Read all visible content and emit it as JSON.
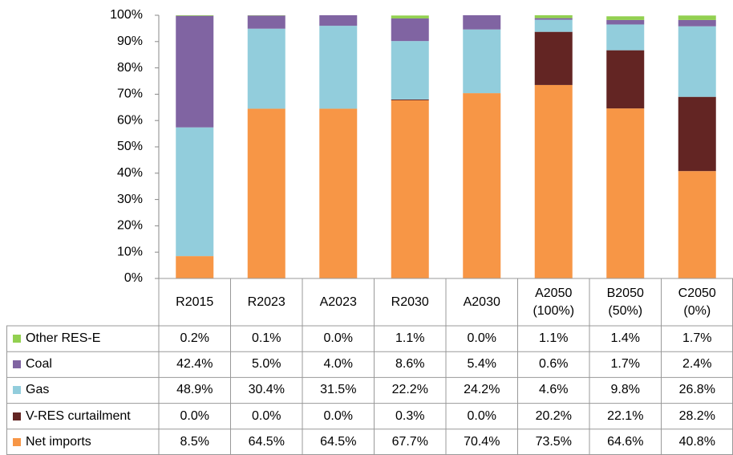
{
  "chart_data": {
    "type": "stacked_bar",
    "categories": [
      "R2015",
      "R2023",
      "A2023",
      "R2030",
      "A2030",
      "A2050 (100%)",
      "B2050 (50%)",
      "C2050 (0%)"
    ],
    "series": [
      {
        "name": "Net imports",
        "color": "#f79646",
        "values": [
          8.5,
          64.5,
          64.5,
          67.7,
          70.4,
          73.5,
          64.6,
          40.8
        ],
        "value_labels": [
          "8.5%",
          "64.5%",
          "64.5%",
          "67.7%",
          "70.4%",
          "73.5%",
          "64.6%",
          "40.8%"
        ]
      },
      {
        "name": "V-RES curtailment",
        "color": "#632523",
        "values": [
          0.0,
          0.0,
          0.0,
          0.3,
          0.0,
          20.2,
          22.1,
          28.2
        ],
        "value_labels": [
          "0.0%",
          "0.0%",
          "0.0%",
          "0.3%",
          "0.0%",
          "20.2%",
          "22.1%",
          "28.2%"
        ]
      },
      {
        "name": "Gas",
        "color": "#92cddc",
        "values": [
          48.9,
          30.4,
          31.5,
          22.2,
          24.2,
          4.6,
          9.8,
          26.8
        ],
        "value_labels": [
          "48.9%",
          "30.4%",
          "31.5%",
          "22.2%",
          "24.2%",
          "4.6%",
          "9.8%",
          "26.8%"
        ]
      },
      {
        "name": "Coal",
        "color": "#8064a2",
        "values": [
          42.4,
          5.0,
          4.0,
          8.6,
          5.4,
          0.6,
          1.7,
          2.4
        ],
        "value_labels": [
          "42.4%",
          "5.0%",
          "4.0%",
          "8.6%",
          "5.4%",
          "0.6%",
          "1.7%",
          "2.4%"
        ]
      },
      {
        "name": "Other RES-E",
        "color": "#92d050",
        "values": [
          0.2,
          0.1,
          0.0,
          1.1,
          0.0,
          1.1,
          1.4,
          1.7
        ],
        "value_labels": [
          "0.2%",
          "0.1%",
          "0.0%",
          "1.1%",
          "0.0%",
          "1.1%",
          "1.4%",
          "1.7%"
        ]
      }
    ],
    "ylim": [
      0,
      100
    ],
    "yticks": [
      {
        "value": 0,
        "label": "0%"
      },
      {
        "value": 10,
        "label": "10%"
      },
      {
        "value": 20,
        "label": "20%"
      },
      {
        "value": 30,
        "label": "30%"
      },
      {
        "value": 40,
        "label": "40%"
      },
      {
        "value": 50,
        "label": "50%"
      },
      {
        "value": 60,
        "label": "60%"
      },
      {
        "value": 70,
        "label": "70%"
      },
      {
        "value": 80,
        "label": "80%"
      },
      {
        "value": 90,
        "label": "90%"
      },
      {
        "value": 100,
        "label": "100%"
      }
    ],
    "legend": "table"
  }
}
